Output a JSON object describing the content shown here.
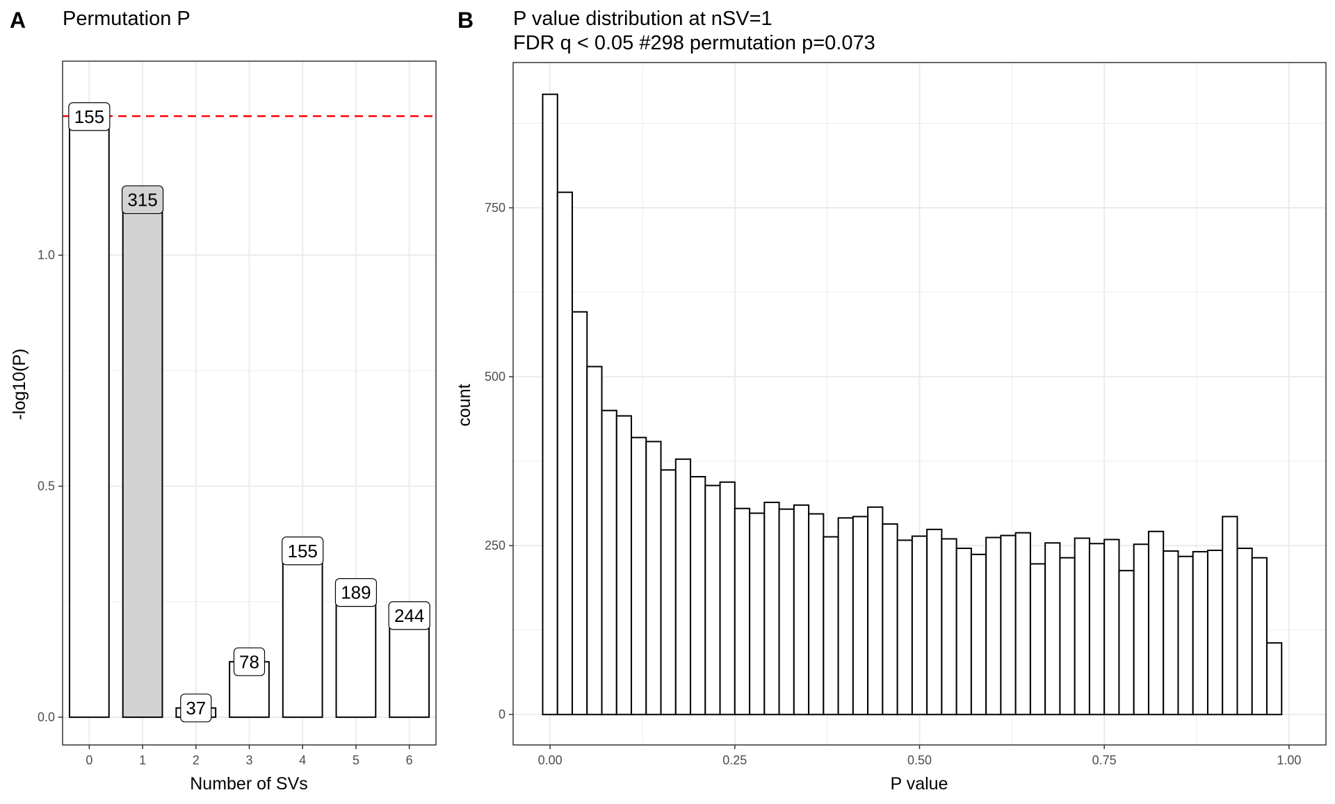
{
  "panel_a": {
    "letter": "A",
    "title": "Permutation P"
  },
  "panel_b": {
    "letter": "B",
    "title_line1": "P value distribution at nSV=1",
    "title_line2": "FDR q < 0.05 #298 permutation p=0.073"
  },
  "colors": {
    "bar_fill": "#ffffff",
    "highlight_fill": "#d3d3d3",
    "outline": "#000000",
    "threshold_line": "#ff0000",
    "grid": "#ebebeb"
  },
  "chart_data": [
    {
      "type": "bar",
      "title": "Permutation P",
      "xlabel": "Number of SVs",
      "ylabel": "-log10(P)",
      "categories": [
        "0",
        "1",
        "2",
        "3",
        "4",
        "5",
        "6"
      ],
      "values": [
        1.3,
        1.12,
        0.02,
        0.12,
        0.36,
        0.27,
        0.22
      ],
      "labels": [
        "155",
        "315",
        "37",
        "78",
        "155",
        "189",
        "244"
      ],
      "highlight_category": "1",
      "ylim": [
        -0.06,
        1.42
      ],
      "yticks": [
        0.0,
        0.5,
        1.0
      ],
      "ytick_labels": [
        "0.0",
        "0.5",
        "1.0"
      ],
      "reference_line": {
        "y": 1.301,
        "style": "dashed",
        "color": "#ff0000"
      },
      "grid": true
    },
    {
      "type": "bar",
      "subtype": "histogram",
      "title": "P value distribution at nSV=1 / FDR q < 0.05 #298 permutation p=0.073",
      "xlabel": "P value",
      "ylabel": "count",
      "bin_width": 0.02,
      "bin_centers_start": 0.0,
      "counts": [
        918,
        773,
        596,
        515,
        450,
        442,
        410,
        404,
        362,
        378,
        352,
        339,
        344,
        305,
        298,
        314,
        304,
        310,
        297,
        263,
        291,
        293,
        307,
        282,
        258,
        264,
        274,
        260,
        246,
        237,
        262,
        265,
        269,
        223,
        254,
        232,
        261,
        253,
        259,
        213,
        252,
        271,
        242,
        234,
        241,
        243,
        293,
        246,
        232,
        106
      ],
      "xlim": [
        -0.05,
        1.05
      ],
      "ylim": [
        -45,
        965
      ],
      "xticks": [
        0.0,
        0.25,
        0.5,
        0.75,
        1.0
      ],
      "xtick_labels": [
        "0.00",
        "0.25",
        "0.50",
        "0.75",
        "1.00"
      ],
      "yticks": [
        0,
        250,
        500,
        750
      ],
      "ytick_labels": [
        "0",
        "250",
        "500",
        "750"
      ],
      "grid": true
    }
  ]
}
